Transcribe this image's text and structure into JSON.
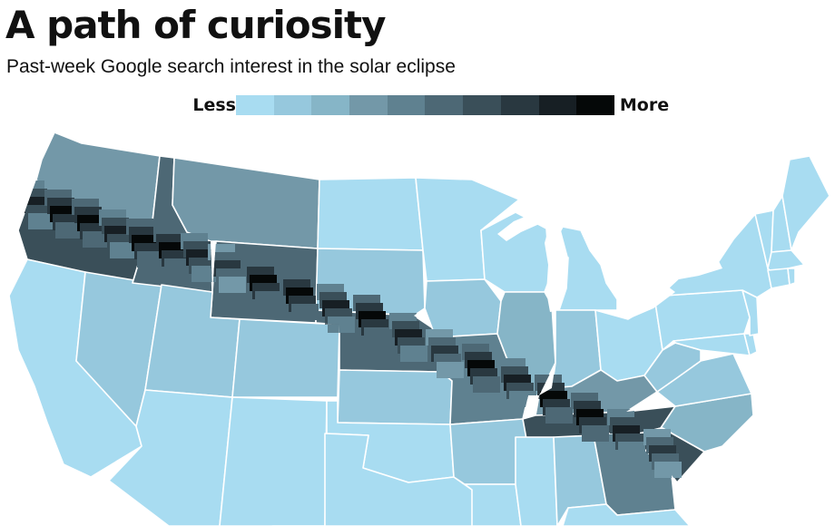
{
  "header": {
    "title": "A path of curiosity",
    "subtitle": "Past-week Google search interest in the solar eclipse"
  },
  "legend": {
    "less_label": "Less",
    "more_label": "More",
    "ramp_colors": [
      "#a8dcf1",
      "#96c8dd",
      "#86b5c7",
      "#7398a8",
      "#5f8190",
      "#4d6875",
      "#3a4f59",
      "#293840",
      "#171f24",
      "#050808"
    ]
  },
  "map": {
    "background_color": "#a8dcf1",
    "border_color": "#ffffff",
    "interest_levels": {
      "WA": 3,
      "OR": 6,
      "ID": 5,
      "MT": 3,
      "WY": 5,
      "CA": 0,
      "NV": 1,
      "UT": 1,
      "AZ": 0,
      "CO": 1,
      "NM": 0,
      "ND": 0,
      "SD": 1,
      "NE": 5,
      "KS": 1,
      "OK": 0,
      "TX": 0,
      "MN": 0,
      "IA": 1,
      "MO": 4,
      "AR": 1,
      "LA": 0,
      "WI": 0,
      "IL": 2,
      "MI": 0,
      "IN": 1,
      "OH": 0,
      "KY": 3,
      "TN": 6,
      "MS": 0,
      "AL": 1,
      "GA": 4,
      "SC": 6,
      "NC": 2,
      "VA": 1,
      "WV": 1,
      "PA": 0,
      "NY": 0,
      "ME": 0,
      "NH": 0,
      "VT": 0,
      "MA": 0,
      "CT": 0,
      "NJ": 0,
      "MD": 0,
      "DE": 0,
      "FL": 0,
      "RI": 0
    },
    "eclipse_path_levels": [
      8,
      9,
      9,
      8,
      9,
      9,
      8,
      7,
      9,
      9,
      8,
      9,
      8,
      7,
      9,
      8,
      9,
      9,
      8,
      7
    ]
  }
}
